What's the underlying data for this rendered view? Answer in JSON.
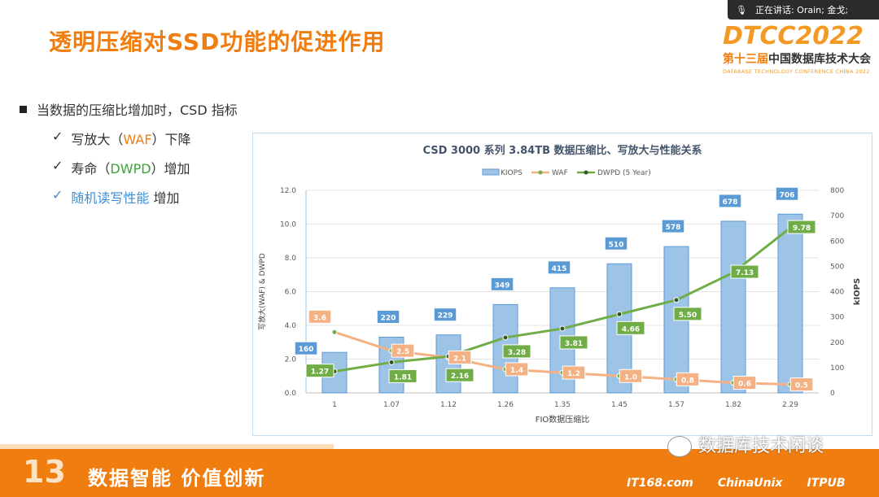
{
  "title": "透明压缩对SSD功能的促进作用",
  "speaker_bar": {
    "text": "正在讲话: Orain; 金戈;"
  },
  "logo": {
    "big": "DTCC2022",
    "cn_prefix": "第十三届",
    "cn_rest": "中国数据库技术大会",
    "en": "DATABASE TECHNOLOGY CONFERENCE CHINA 2022"
  },
  "bullets": {
    "main": "当数据的压缩比增加时，CSD 指标",
    "items": [
      {
        "check": "✓",
        "a": "写放大（",
        "b": "WAF",
        "c": "）下降"
      },
      {
        "check": "✓",
        "a": "寿命（",
        "b": "DWPD",
        "c": "）增加"
      },
      {
        "check": "✓",
        "a": "随机读写性能",
        "b": "",
        "c": " 增加"
      }
    ]
  },
  "footer": {
    "thirteen": "13",
    "slogan": "数据智能  价值创新",
    "wechat": "数据库技术闲谈",
    "partners": [
      "IT168.com",
      "ChinaUnix",
      "ITPUB"
    ]
  },
  "colors": {
    "kiops": "#9dc3e6",
    "waf": "#f4b183",
    "dwpd": "#70ad47",
    "accent": "#f07d10"
  },
  "chart_data": {
    "type": "bar+line",
    "title": "CSD 3000 系列 3.84TB 数据压缩比、写放大与性能关系",
    "xlabel": "FIO数据压缩比",
    "ylabel": "写放大(WAF) & DWPD",
    "y2label": "kIOPS",
    "categories": [
      "1",
      "1.07",
      "1.12",
      "1.26",
      "1.35",
      "1.45",
      "1.57",
      "1.82",
      "2.29"
    ],
    "ylim": [
      0,
      12
    ],
    "yticks": [
      "0.0",
      "2.0",
      "4.0",
      "6.0",
      "8.0",
      "10.0",
      "12.0"
    ],
    "y2lim": [
      0,
      800
    ],
    "y2ticks": [
      "0",
      "100",
      "200",
      "300",
      "400",
      "500",
      "600",
      "700",
      "800"
    ],
    "legend": [
      "KIOPS",
      "WAF",
      "DWPD (5 Year)"
    ],
    "series": [
      {
        "name": "KIOPS",
        "axis": "right",
        "values": [
          160,
          220,
          229,
          349,
          415,
          510,
          578,
          678,
          706
        ],
        "labels": [
          "160",
          "220",
          "229",
          "349",
          "415",
          "510",
          "578",
          "678",
          "706"
        ]
      },
      {
        "name": "WAF",
        "axis": "left",
        "values": [
          3.6,
          2.5,
          2.1,
          1.4,
          1.2,
          1.0,
          0.8,
          0.6,
          0.5
        ],
        "labels": [
          "3.6",
          "2.5",
          "2.1",
          "1.4",
          "1.2",
          "1.0",
          "0.8",
          "0.6",
          "0.5"
        ]
      },
      {
        "name": "DWPD (5 Year)",
        "axis": "left",
        "values": [
          1.27,
          1.81,
          2.16,
          3.28,
          3.81,
          4.66,
          5.5,
          7.13,
          9.78
        ],
        "labels": [
          "1.27",
          "1.81",
          "2.16",
          "3.28",
          "3.81",
          "4.66",
          "5.50",
          "7.13",
          "9.78"
        ]
      }
    ]
  }
}
